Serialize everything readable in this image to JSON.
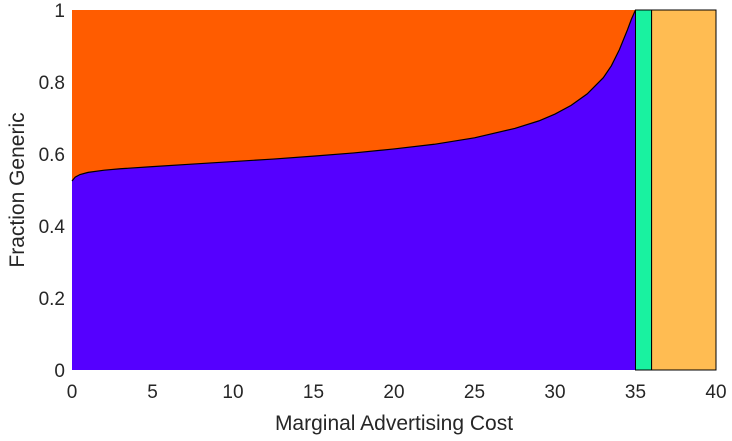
{
  "chart_data": {
    "type": "area",
    "xlabel": "Marginal Advertising Cost",
    "ylabel": "Fraction Generic",
    "xlim": [
      0,
      40
    ],
    "ylim": [
      0,
      1
    ],
    "xticks": [
      0,
      5,
      10,
      15,
      20,
      25,
      30,
      35,
      40
    ],
    "yticks": [
      0,
      0.2,
      0.4,
      0.6,
      0.8,
      1
    ],
    "grid": false,
    "legend": "none",
    "boundary_curve": {
      "x": [
        0,
        0.2,
        0.5,
        1,
        2,
        3,
        5,
        7.5,
        10,
        12.5,
        15,
        17.5,
        20,
        22.5,
        25,
        27.5,
        29,
        30,
        31,
        32,
        33,
        33.5,
        34,
        34.5,
        34.75,
        35
      ],
      "y": [
        0.525,
        0.536,
        0.543,
        0.549,
        0.555,
        0.559,
        0.565,
        0.572,
        0.579,
        0.586,
        0.594,
        0.603,
        0.614,
        0.627,
        0.645,
        0.671,
        0.692,
        0.711,
        0.735,
        0.767,
        0.812,
        0.845,
        0.89,
        0.945,
        0.975,
        1.0
      ]
    },
    "regions": [
      {
        "color": "#5500FF",
        "x_range": [
          0,
          35
        ],
        "between": [
          "0",
          "boundary_curve"
        ]
      },
      {
        "color": "#FF5C00",
        "x_range": [
          0,
          35
        ],
        "between": [
          "boundary_curve",
          "1"
        ]
      },
      {
        "color": "#19F2A0",
        "x_range": [
          35,
          36
        ],
        "between": [
          "0",
          "1"
        ]
      },
      {
        "color": "#FFBC52",
        "x_range": [
          36,
          40
        ],
        "between": [
          "0",
          "1"
        ]
      }
    ]
  }
}
